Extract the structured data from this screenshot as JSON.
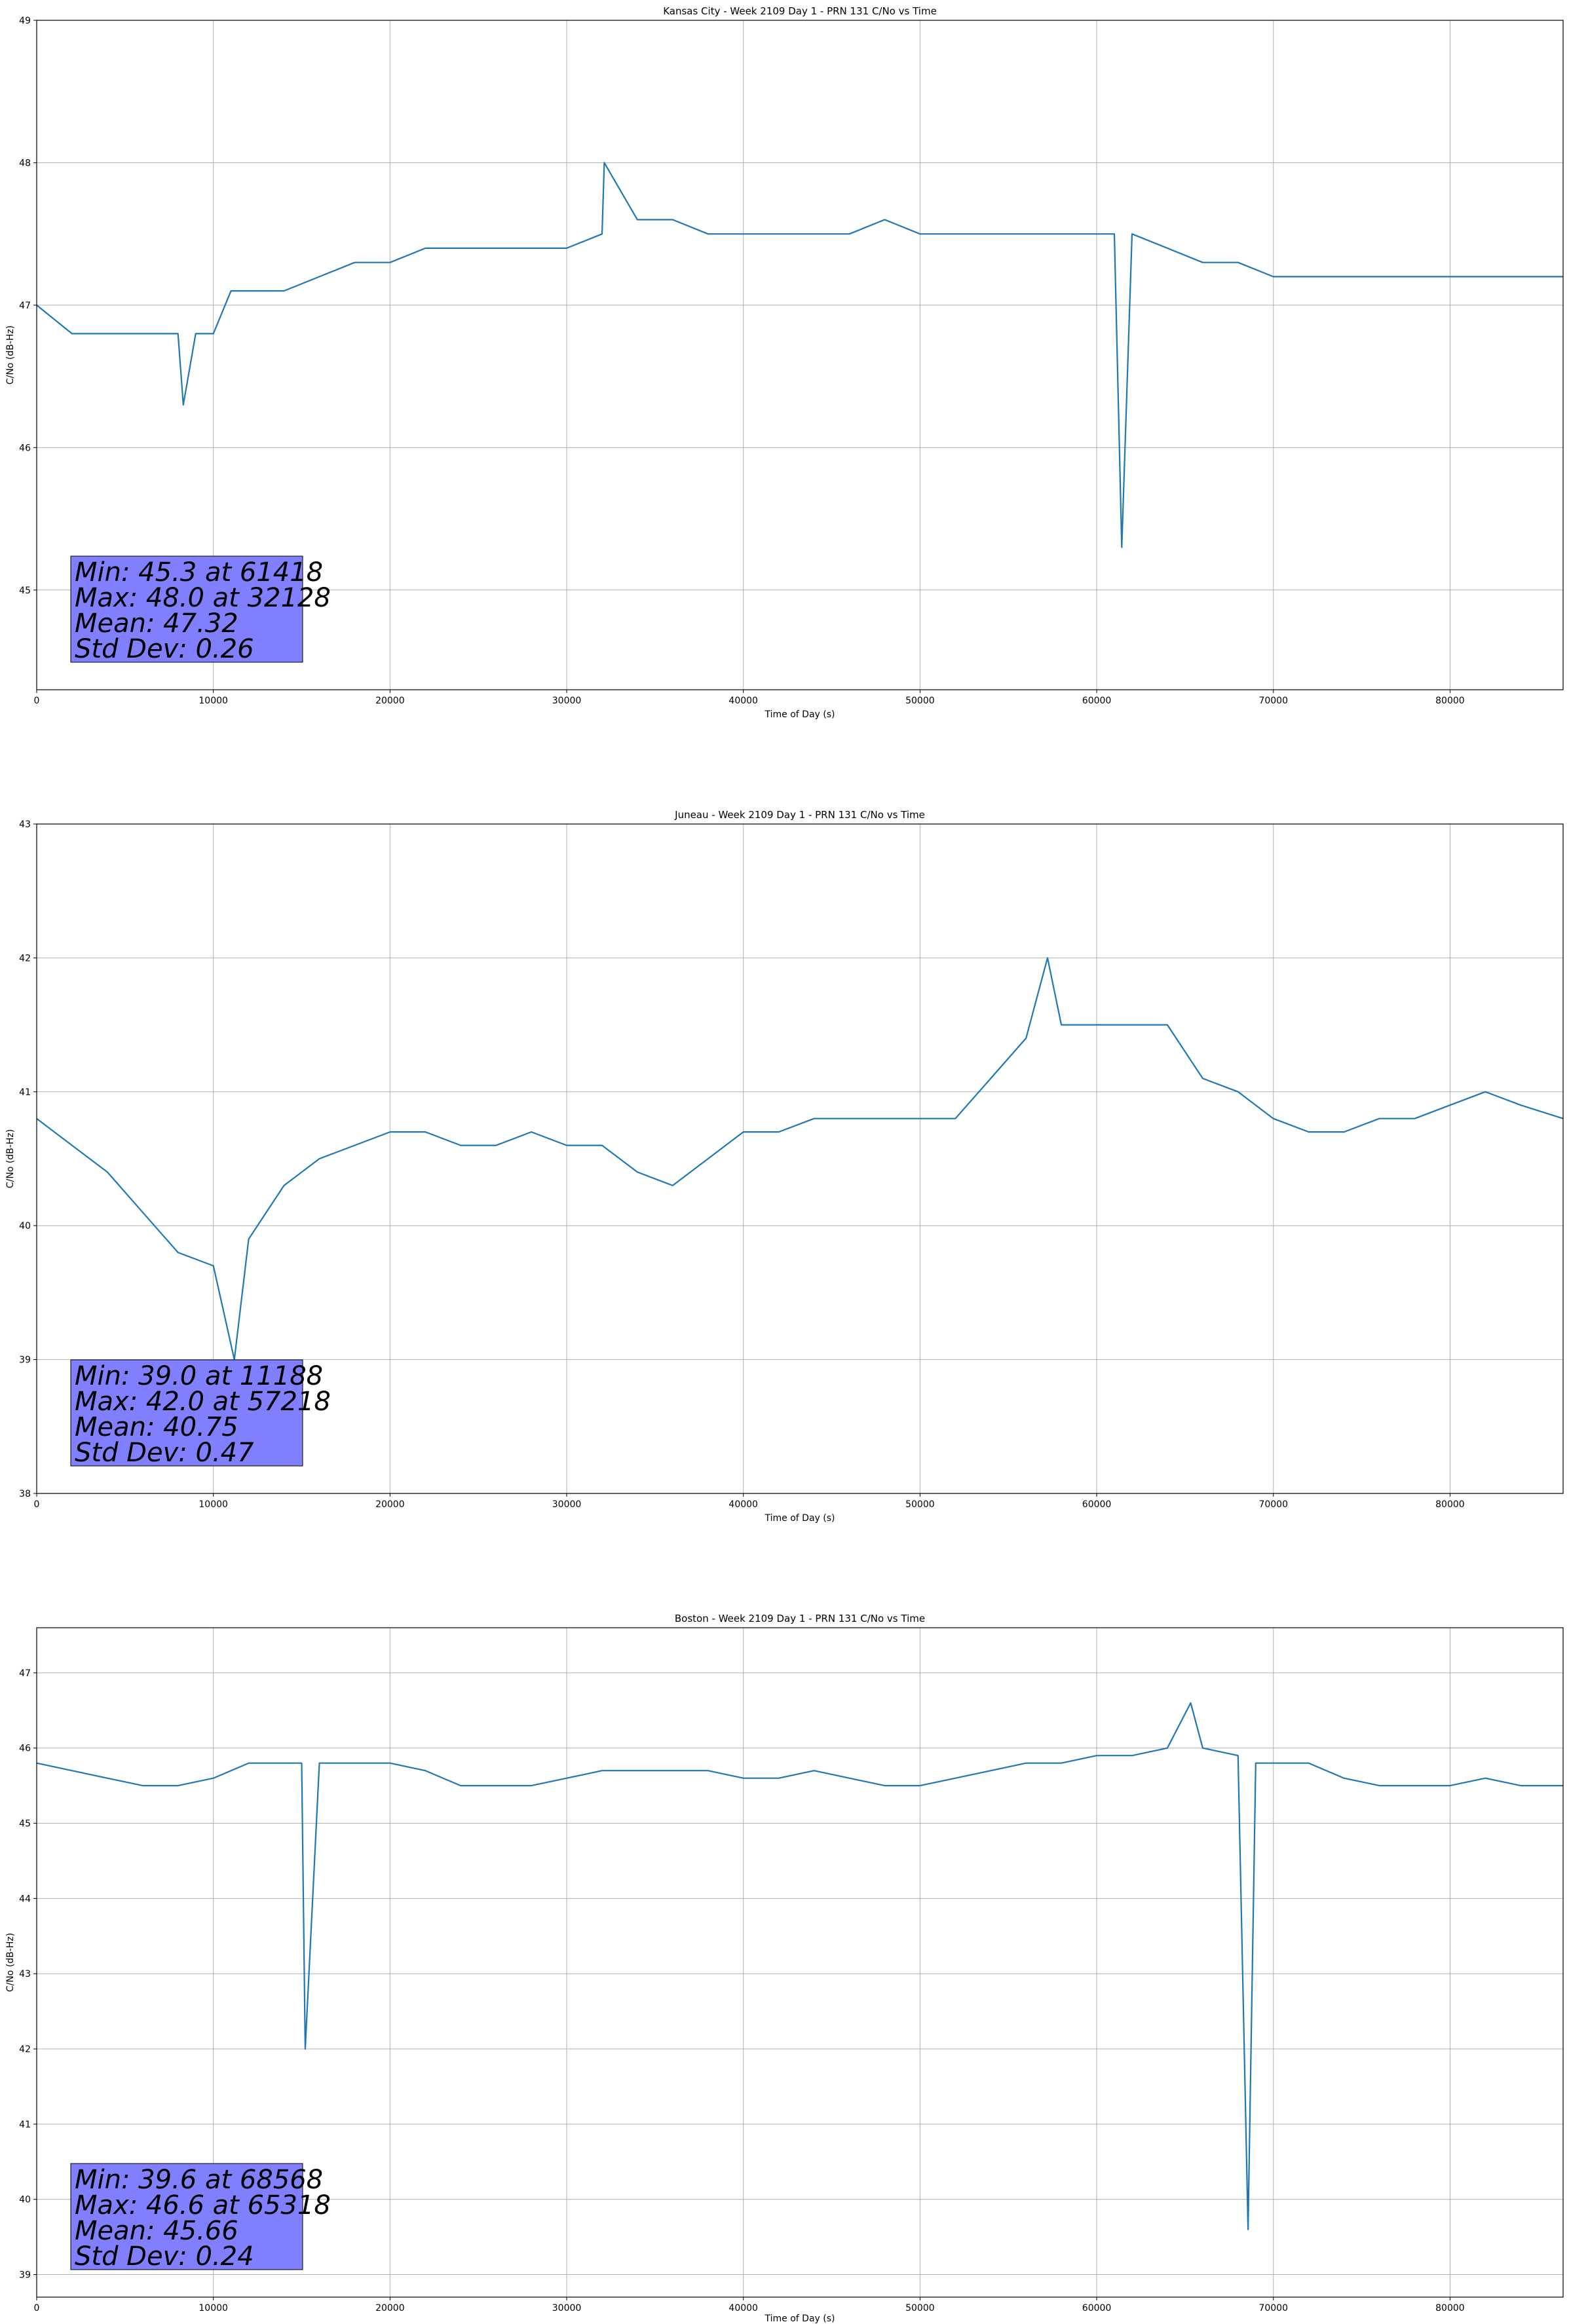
{
  "chart_data": [
    {
      "type": "line",
      "title": "Kansas City - Week 2109 Day 1 - PRN 131 C/No vs Time",
      "xlabel": "Time of Day (s)",
      "ylabel": "C/No (dB-Hz)",
      "xlim": [
        0,
        86400
      ],
      "ylim": [
        44.3,
        49.0
      ],
      "xticks": [
        0,
        10000,
        20000,
        30000,
        40000,
        50000,
        60000,
        70000,
        80000
      ],
      "yticks": [
        45,
        46,
        47,
        48,
        49
      ],
      "grid": true,
      "color": "#1f77b4",
      "series": [
        {
          "x": [
            0,
            2000,
            4000,
            6000,
            8000,
            8300,
            9000,
            10000,
            11000,
            12000,
            14000,
            16000,
            18000,
            20000,
            22000,
            24000,
            26000,
            28000,
            30000,
            32000,
            32128,
            34000,
            36000,
            38000,
            40000,
            42000,
            44000,
            46000,
            48000,
            50000,
            52000,
            54000,
            56000,
            58000,
            60000,
            61000,
            61418,
            62000,
            64000,
            66000,
            68000,
            70000,
            72000,
            74000,
            76000,
            78000,
            80000,
            82000,
            84000,
            86400
          ],
          "y": [
            47.0,
            46.8,
            46.8,
            46.8,
            46.8,
            46.3,
            46.8,
            46.8,
            47.1,
            47.1,
            47.1,
            47.2,
            47.3,
            47.3,
            47.4,
            47.4,
            47.4,
            47.4,
            47.4,
            47.5,
            48.0,
            47.6,
            47.6,
            47.5,
            47.5,
            47.5,
            47.5,
            47.5,
            47.6,
            47.5,
            47.5,
            47.5,
            47.5,
            47.5,
            47.5,
            47.5,
            45.3,
            47.5,
            47.4,
            47.3,
            47.3,
            47.2,
            47.2,
            47.2,
            47.2,
            47.2,
            47.2,
            47.2,
            47.2,
            47.2
          ]
        }
      ],
      "stats": {
        "line1": "Min: 45.3 at 61418",
        "line2": "Max: 48.0 at 32128",
        "line3": "Mean: 47.32",
        "line4": "Std Dev: 0.26"
      }
    },
    {
      "type": "line",
      "title": "Juneau - Week 2109 Day 1 - PRN 131 C/No vs Time",
      "xlabel": "Time of Day (s)",
      "ylabel": "C/No (dB-Hz)",
      "xlim": [
        0,
        86400
      ],
      "ylim": [
        38.0,
        43.0
      ],
      "xticks": [
        0,
        10000,
        20000,
        30000,
        40000,
        50000,
        60000,
        70000,
        80000
      ],
      "yticks": [
        38,
        39,
        40,
        41,
        42,
        43
      ],
      "grid": true,
      "color": "#1f77b4",
      "series": [
        {
          "x": [
            0,
            2000,
            4000,
            6000,
            8000,
            10000,
            11188,
            12000,
            14000,
            16000,
            18000,
            20000,
            22000,
            24000,
            26000,
            28000,
            30000,
            32000,
            34000,
            36000,
            38000,
            40000,
            42000,
            44000,
            46000,
            48000,
            50000,
            52000,
            54000,
            56000,
            57218,
            58000,
            60000,
            62000,
            64000,
            66000,
            68000,
            70000,
            72000,
            74000,
            76000,
            78000,
            80000,
            82000,
            84000,
            86400
          ],
          "y": [
            40.8,
            40.6,
            40.4,
            40.1,
            39.8,
            39.7,
            39.0,
            39.9,
            40.3,
            40.5,
            40.6,
            40.7,
            40.7,
            40.6,
            40.6,
            40.7,
            40.6,
            40.6,
            40.4,
            40.3,
            40.5,
            40.7,
            40.7,
            40.8,
            40.8,
            40.8,
            40.8,
            40.8,
            41.1,
            41.4,
            42.0,
            41.5,
            41.5,
            41.5,
            41.5,
            41.1,
            41.0,
            40.8,
            40.7,
            40.7,
            40.8,
            40.8,
            40.9,
            41.0,
            40.9,
            40.8
          ]
        }
      ],
      "stats": {
        "line1": "Min: 39.0 at 11188",
        "line2": "Max: 42.0 at 57218",
        "line3": "Mean: 40.75",
        "line4": "Std Dev: 0.47"
      }
    },
    {
      "type": "line",
      "title": "Boston - Week 2109 Day 1 - PRN 131 C/No vs Time",
      "xlabel": "Time of Day (s)",
      "ylabel": "C/No (dB-Hz)",
      "xlim": [
        0,
        86400
      ],
      "ylim": [
        38.7,
        47.6
      ],
      "xticks": [
        0,
        10000,
        20000,
        30000,
        40000,
        50000,
        60000,
        70000,
        80000
      ],
      "yticks": [
        39,
        40,
        41,
        42,
        43,
        44,
        45,
        46,
        47
      ],
      "grid": true,
      "color": "#1f77b4",
      "series": [
        {
          "x": [
            0,
            2000,
            4000,
            6000,
            8000,
            10000,
            12000,
            14000,
            15000,
            15200,
            16000,
            18000,
            20000,
            22000,
            24000,
            26000,
            28000,
            30000,
            32000,
            34000,
            36000,
            38000,
            40000,
            42000,
            44000,
            46000,
            48000,
            50000,
            52000,
            54000,
            56000,
            58000,
            60000,
            62000,
            64000,
            65318,
            66000,
            68000,
            68568,
            69000,
            70000,
            72000,
            74000,
            76000,
            78000,
            80000,
            82000,
            84000,
            86400
          ],
          "y": [
            45.8,
            45.7,
            45.6,
            45.5,
            45.5,
            45.6,
            45.8,
            45.8,
            45.8,
            42.0,
            45.8,
            45.8,
            45.8,
            45.7,
            45.5,
            45.5,
            45.5,
            45.6,
            45.7,
            45.7,
            45.7,
            45.7,
            45.6,
            45.6,
            45.7,
            45.6,
            45.5,
            45.5,
            45.6,
            45.7,
            45.8,
            45.8,
            45.9,
            45.9,
            46.0,
            46.6,
            46.0,
            45.9,
            39.6,
            45.8,
            45.8,
            45.8,
            45.6,
            45.5,
            45.5,
            45.5,
            45.6,
            45.5,
            45.5
          ]
        }
      ],
      "stats": {
        "line1": "Min: 39.6 at 68568",
        "line2": "Max: 46.6 at 65318",
        "line3": "Mean: 45.66",
        "line4": "Std Dev: 0.24"
      }
    }
  ]
}
